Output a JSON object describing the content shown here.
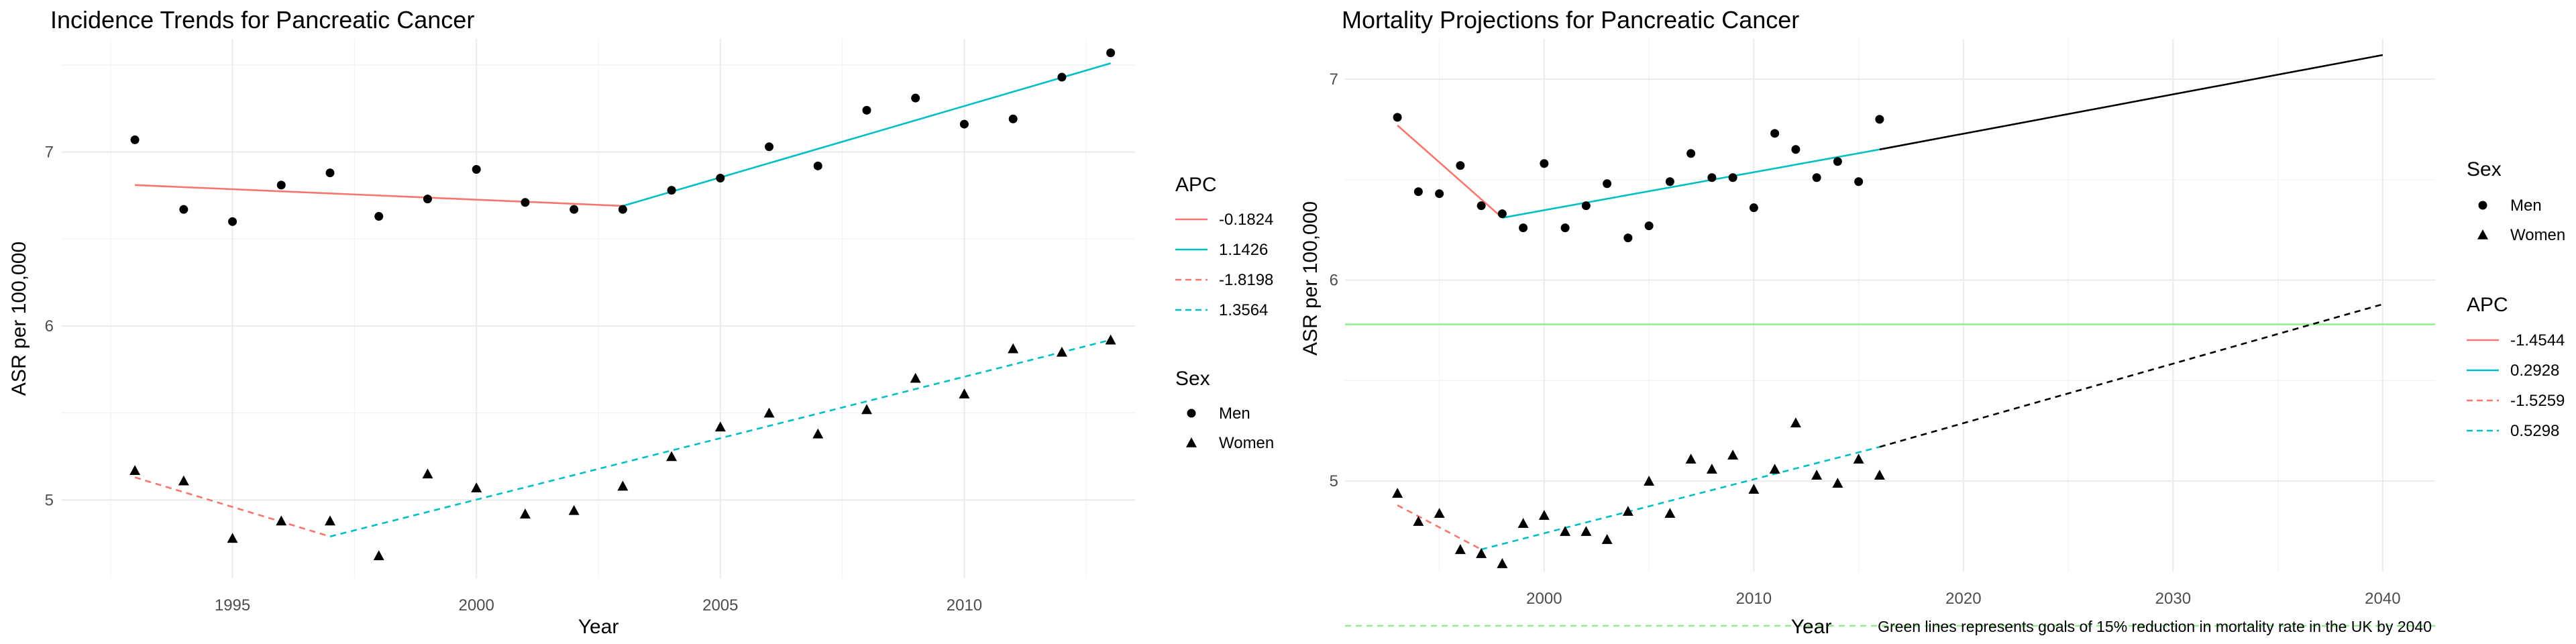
{
  "chart_data": [
    {
      "type": "scatter",
      "title": "Incidence Trends for Pancreatic Cancer",
      "xlabel": "Year",
      "ylabel": "ASR per 100,000",
      "xlim": [
        1991.5,
        2013.5
      ],
      "ylim": [
        4.55,
        7.65
      ],
      "x_ticks": [
        1995,
        2000,
        2005,
        2010
      ],
      "y_ticks": [
        5,
        6,
        7
      ],
      "grid": true,
      "legend_position": "right",
      "points": [
        {
          "sex": "Men",
          "x": [
            1993,
            1994,
            1995,
            1996,
            1997,
            1998,
            1999,
            2000,
            2001,
            2002,
            2003,
            2004,
            2005,
            2006,
            2007,
            2008,
            2009,
            2010,
            2011,
            2012,
            2013
          ],
          "y": [
            7.07,
            6.67,
            6.6,
            6.81,
            6.88,
            6.63,
            6.73,
            6.9,
            6.71,
            6.67,
            6.67,
            6.78,
            6.85,
            7.03,
            6.92,
            7.24,
            7.31,
            7.16,
            7.19,
            7.43,
            7.57
          ]
        },
        {
          "sex": "Women",
          "x": [
            1993,
            1994,
            1995,
            1996,
            1997,
            1998,
            1999,
            2000,
            2001,
            2002,
            2003,
            2004,
            2005,
            2006,
            2007,
            2008,
            2009,
            2010,
            2011,
            2012,
            2013
          ],
          "y": [
            5.17,
            5.11,
            4.78,
            4.88,
            4.88,
            4.68,
            5.15,
            5.07,
            4.92,
            4.94,
            5.08,
            5.25,
            5.42,
            5.5,
            5.38,
            5.52,
            5.7,
            5.61,
            5.87,
            5.85,
            5.92
          ]
        }
      ],
      "series": [
        {
          "apc": "-0.1824",
          "sex": "Men",
          "x": [
            1993,
            2003
          ],
          "y": [
            6.81,
            6.69
          ],
          "color": "#F8766D",
          "dash": "solid"
        },
        {
          "apc": "1.1426",
          "sex": "Men",
          "x": [
            2003,
            2013
          ],
          "y": [
            6.69,
            7.51
          ],
          "color": "#00BFC4",
          "dash": "solid"
        },
        {
          "apc": "-1.8198",
          "sex": "Women",
          "x": [
            1993,
            1997
          ],
          "y": [
            5.13,
            4.79
          ],
          "color": "#F8766D",
          "dash": "dashed"
        },
        {
          "apc": "1.3564",
          "sex": "Women",
          "x": [
            1997,
            2013
          ],
          "y": [
            4.79,
            5.92
          ],
          "color": "#00BFC4",
          "dash": "dashed"
        }
      ],
      "legend_apc": {
        "title": "APC",
        "entries": [
          {
            "label": "-0.1824",
            "color": "#F8766D",
            "dash": "solid"
          },
          {
            "label": "1.1426",
            "color": "#00BFC4",
            "dash": "solid"
          },
          {
            "label": "-1.8198",
            "color": "#F8766D",
            "dash": "dashed"
          },
          {
            "label": "1.3564",
            "color": "#00BFC4",
            "dash": "dashed"
          }
        ]
      },
      "legend_sex": {
        "title": "Sex",
        "entries": [
          {
            "label": "Men",
            "shape": "circle"
          },
          {
            "label": "Women",
            "shape": "triangle"
          }
        ]
      }
    },
    {
      "type": "scatter",
      "title": "Mortality Projections for Pancreatic Cancer",
      "xlabel": "Year",
      "ylabel": "ASR per 100,000",
      "xlim": [
        1990.5,
        2042.5
      ],
      "ylim": [
        4.55,
        7.2
      ],
      "x_ticks": [
        2000,
        2010,
        2020,
        2030,
        2040
      ],
      "y_ticks": [
        5,
        6,
        7
      ],
      "grid": true,
      "legend_position": "right",
      "caption": "Green lines represents goals of 15% reduction in mortality rate in the UK by 2040",
      "points": [
        {
          "sex": "Men",
          "x": [
            1993,
            1994,
            1995,
            1996,
            1997,
            1998,
            1999,
            2000,
            2001,
            2002,
            2003,
            2004,
            2005,
            2006,
            2007,
            2008,
            2009,
            2010,
            2011,
            2012,
            2013,
            2014,
            2015,
            2016
          ],
          "y": [
            6.81,
            6.44,
            6.43,
            6.57,
            6.37,
            6.33,
            6.26,
            6.58,
            6.26,
            6.37,
            6.48,
            6.21,
            6.27,
            6.49,
            6.63,
            6.51,
            6.51,
            6.36,
            6.73,
            6.65,
            6.51,
            6.59,
            6.49,
            6.8
          ]
        },
        {
          "sex": "Women",
          "x": [
            1993,
            1994,
            1995,
            1996,
            1997,
            1998,
            1999,
            2000,
            2001,
            2002,
            2003,
            2004,
            2005,
            2006,
            2007,
            2008,
            2009,
            2010,
            2011,
            2012,
            2013,
            2014,
            2015,
            2016
          ],
          "y": [
            4.94,
            4.8,
            4.84,
            4.66,
            4.64,
            4.59,
            4.79,
            4.83,
            4.75,
            4.75,
            4.71,
            4.85,
            5.0,
            4.84,
            5.11,
            5.06,
            5.13,
            4.96,
            5.06,
            5.29,
            5.03,
            4.99,
            5.11,
            5.03
          ]
        }
      ],
      "series": [
        {
          "apc": "-1.4544",
          "sex": "Men",
          "x": [
            1993,
            1998
          ],
          "y": [
            6.77,
            6.31
          ],
          "color": "#F8766D",
          "dash": "solid"
        },
        {
          "apc": "0.2928",
          "sex": "Men",
          "x": [
            1998,
            2016
          ],
          "y": [
            6.31,
            6.65
          ],
          "color": "#00BFC4",
          "dash": "solid"
        },
        {
          "apc": "-1.5259",
          "sex": "Women",
          "x": [
            1993,
            1997
          ],
          "y": [
            4.88,
            4.66
          ],
          "color": "#F8766D",
          "dash": "dashed"
        },
        {
          "apc": "0.5298",
          "sex": "Women",
          "x": [
            1997,
            2016
          ],
          "y": [
            4.66,
            5.17
          ],
          "color": "#00BFC4",
          "dash": "dashed"
        },
        {
          "sex": "Men",
          "x": [
            2016,
            2040
          ],
          "y": [
            6.65,
            7.12
          ],
          "color": "#000000",
          "dash": "solid"
        },
        {
          "sex": "Women",
          "x": [
            2016,
            2040
          ],
          "y": [
            5.17,
            5.88
          ],
          "color": "#000000",
          "dash": "dashed"
        }
      ],
      "reference_lines": [
        {
          "y": 5.78,
          "color": "#90EE90",
          "dash": "solid"
        },
        {
          "y": 4.28,
          "color": "#90EE90",
          "dash": "dashed"
        }
      ],
      "legend_sex": {
        "title": "Sex",
        "entries": [
          {
            "label": "Men",
            "shape": "circle"
          },
          {
            "label": "Women",
            "shape": "triangle"
          }
        ]
      },
      "legend_apc": {
        "title": "APC",
        "entries": [
          {
            "label": "-1.4544",
            "color": "#F8766D",
            "dash": "solid"
          },
          {
            "label": "0.2928",
            "color": "#00BFC4",
            "dash": "solid"
          },
          {
            "label": "-1.5259",
            "color": "#F8766D",
            "dash": "dashed"
          },
          {
            "label": "0.5298",
            "color": "#00BFC4",
            "dash": "dashed"
          }
        ]
      }
    }
  ]
}
